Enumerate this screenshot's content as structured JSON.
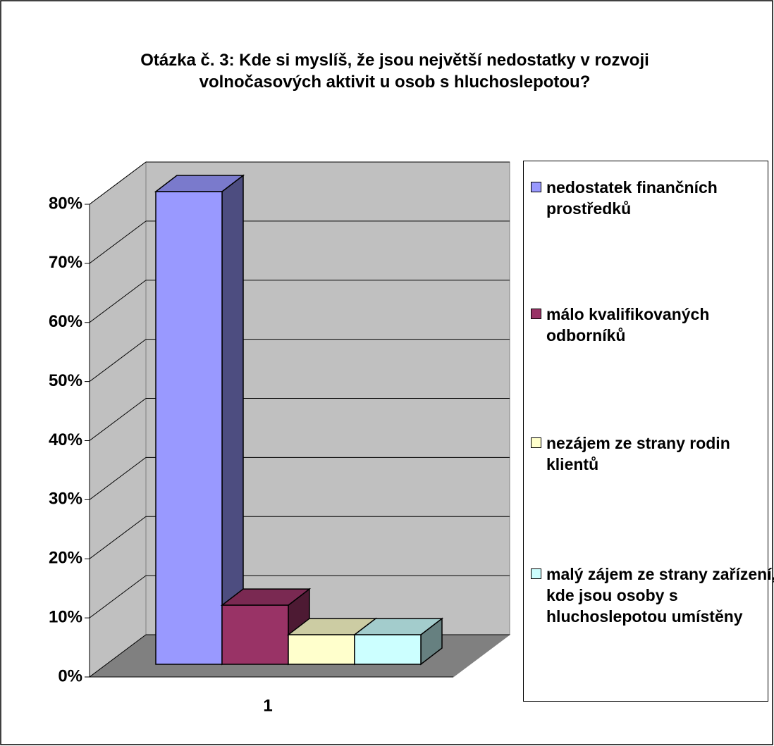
{
  "chart_data": {
    "type": "bar3d",
    "title": "Otázka č. 3: Kde si myslíš, že jsou největší nedostatky v rozvoji volnočasových aktivit u osob s hluchoslepotou?",
    "categories": [
      "1"
    ],
    "series": [
      {
        "name": "nedostatek finančních prostředků",
        "color": "#9999ff",
        "values": [
          80
        ]
      },
      {
        "name": "málo kvalifikovaných odborníků",
        "color": "#993366",
        "values": [
          10
        ]
      },
      {
        "name": "nezájem ze strany rodin klientů",
        "color": "#ffffcc",
        "values": [
          5
        ]
      },
      {
        "name": "malý zájem ze strany zařízení, kde jsou osoby s hluchoslepotou umístěny",
        "color": "#ccffff",
        "values": [
          5
        ]
      }
    ],
    "ylim": [
      0,
      80
    ],
    "yticks": [
      {
        "value": 0,
        "label": "0%"
      },
      {
        "value": 10,
        "label": "10%"
      },
      {
        "value": 20,
        "label": "20%"
      },
      {
        "value": 30,
        "label": "30%"
      },
      {
        "value": 40,
        "label": "40%"
      },
      {
        "value": 50,
        "label": "50%"
      },
      {
        "value": 60,
        "label": "60%"
      },
      {
        "value": 70,
        "label": "70%"
      },
      {
        "value": 80,
        "label": "80%"
      }
    ],
    "grid": true,
    "legend": "right"
  }
}
